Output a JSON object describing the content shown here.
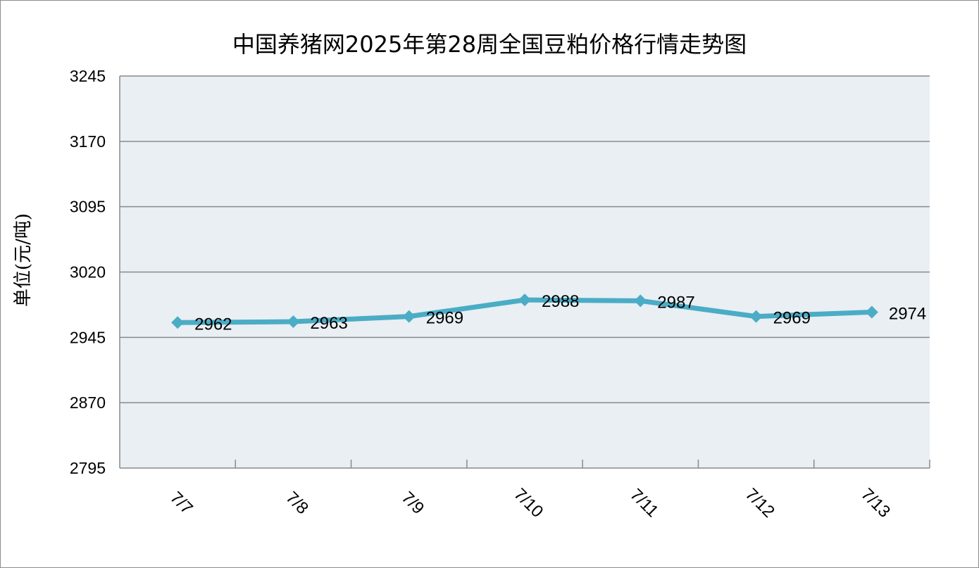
{
  "chart_data": {
    "type": "line",
    "title": "中国养猪网2025年第28周全国豆粕价格行情走势图",
    "ylabel": "单位(元/吨)",
    "xlabel": "",
    "categories": [
      "7/7",
      "7/8",
      "7/9",
      "7/10",
      "7/11",
      "7/12",
      "7/13"
    ],
    "series": [
      {
        "values": [
          2962,
          2963,
          2969,
          2988,
          2987,
          2969,
          2974
        ]
      }
    ],
    "ylim": [
      2795,
      3245
    ],
    "yticks": [
      2795,
      2870,
      2945,
      3020,
      3095,
      3170,
      3245
    ],
    "grid": true,
    "legend": "none",
    "colors": {
      "line": "#4bacc6",
      "plot_bg": "#e9eff3",
      "grid": "#8a8a8a"
    }
  }
}
